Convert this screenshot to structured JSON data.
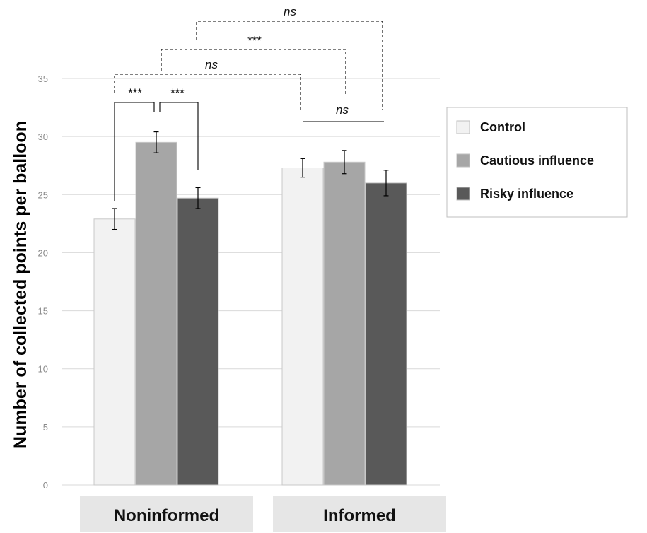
{
  "chart_data": {
    "type": "bar",
    "ylabel": "Number of collected points per balloon",
    "ylim": [
      0,
      35
    ],
    "yticks": [
      0,
      5,
      10,
      15,
      20,
      25,
      30,
      35
    ],
    "categories": [
      "Noninformed",
      "Informed"
    ],
    "grid": true,
    "legend_position": "right",
    "series": [
      {
        "name": "Control",
        "color": "#f2f2f2",
        "values": [
          22.9,
          27.3
        ],
        "errors": [
          0.9,
          0.8
        ]
      },
      {
        "name": "Cautious influence",
        "color": "#a6a6a6",
        "values": [
          29.5,
          27.8
        ],
        "errors": [
          0.9,
          1.0
        ]
      },
      {
        "name": "Risky influence",
        "color": "#595959",
        "values": [
          24.7,
          26.0
        ],
        "errors": [
          0.9,
          1.1
        ]
      }
    ],
    "annotations": [
      {
        "label": "***",
        "from": "Noninformed / Control",
        "to": "Noninformed / Cautious influence",
        "italic": false
      },
      {
        "label": "***",
        "from": "Noninformed / Cautious influence",
        "to": "Noninformed / Risky influence",
        "italic": false
      },
      {
        "label": "ns",
        "from": "Noninformed",
        "to": "Informed / Control",
        "italic": true
      },
      {
        "label": "***",
        "from": "Noninformed / Cautious influence",
        "to": "Informed / Cautious influence",
        "italic": false
      },
      {
        "label": "ns",
        "from": "Noninformed / Risky influence",
        "to": "Informed / Risky influence",
        "italic": true
      },
      {
        "label": "ns",
        "from": "Informed / Control",
        "to": "Informed / Risky influence",
        "italic": true
      }
    ]
  }
}
